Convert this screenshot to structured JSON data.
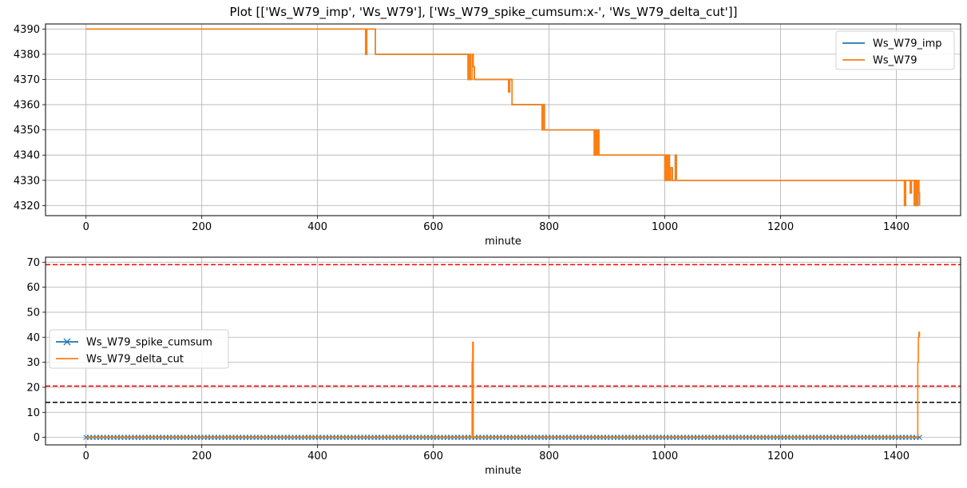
{
  "figure": {
    "title": "Plot [['Ws_W79_imp', 'Ws_W79'], ['Ws_W79_spike_cumsum:x-', 'Ws_W79_delta_cut']]"
  },
  "chart_data": [
    {
      "type": "line",
      "xlabel": "minute",
      "ylabel": "",
      "xlim": [
        -70,
        1511
      ],
      "ylim": [
        4316,
        4392
      ],
      "xticks": [
        0,
        200,
        400,
        600,
        800,
        1000,
        1200,
        1400
      ],
      "yticks": [
        4320,
        4330,
        4340,
        4350,
        4360,
        4370,
        4380,
        4390
      ],
      "grid": true,
      "legend": "top-right",
      "series": [
        {
          "name": "Ws_W79_imp",
          "color": "#1f77b4",
          "points": [
            [
              0,
              4390
            ],
            [
              483,
              4390
            ],
            [
              483,
              4380
            ],
            [
              485,
              4380
            ],
            [
              485,
              4390
            ],
            [
              500,
              4390
            ],
            [
              500,
              4380
            ],
            [
              660,
              4380
            ],
            [
              660,
              4370
            ],
            [
              662,
              4370
            ],
            [
              662,
              4380
            ],
            [
              664,
              4380
            ],
            [
              664,
              4370
            ],
            [
              667,
              4370
            ],
            [
              667,
              4380
            ],
            [
              669,
              4380
            ],
            [
              669,
              4375
            ],
            [
              671,
              4375
            ],
            [
              671,
              4370
            ],
            [
              730,
              4370
            ],
            [
              730,
              4365
            ],
            [
              732,
              4365
            ],
            [
              732,
              4370
            ],
            [
              736,
              4370
            ],
            [
              736,
              4360
            ],
            [
              788,
              4360
            ],
            [
              788,
              4350
            ],
            [
              790,
              4350
            ],
            [
              790,
              4360
            ],
            [
              792,
              4360
            ],
            [
              792,
              4350
            ],
            [
              878,
              4350
            ],
            [
              878,
              4340
            ],
            [
              880,
              4340
            ],
            [
              880,
              4350
            ],
            [
              882,
              4350
            ],
            [
              882,
              4340
            ],
            [
              884,
              4340
            ],
            [
              884,
              4350
            ],
            [
              886,
              4350
            ],
            [
              886,
              4340
            ],
            [
              1000,
              4340
            ],
            [
              1000,
              4330
            ],
            [
              1002,
              4330
            ],
            [
              1002,
              4340
            ],
            [
              1004,
              4340
            ],
            [
              1004,
              4330
            ],
            [
              1006,
              4330
            ],
            [
              1006,
              4340
            ],
            [
              1008,
              4340
            ],
            [
              1008,
              4330
            ],
            [
              1010,
              4330
            ],
            [
              1010,
              4335
            ],
            [
              1013,
              4335
            ],
            [
              1013,
              4330
            ],
            [
              1018,
              4330
            ],
            [
              1018,
              4340
            ],
            [
              1020,
              4340
            ],
            [
              1020,
              4330
            ],
            [
              1414,
              4330
            ],
            [
              1414,
              4320
            ],
            [
              1416,
              4320
            ],
            [
              1416,
              4330
            ],
            [
              1424,
              4330
            ],
            [
              1424,
              4325
            ],
            [
              1426,
              4325
            ],
            [
              1426,
              4330
            ],
            [
              1431,
              4330
            ],
            [
              1431,
              4320
            ],
            [
              1433,
              4320
            ],
            [
              1433,
              4330
            ],
            [
              1435,
              4330
            ],
            [
              1435,
              4320
            ],
            [
              1437,
              4320
            ],
            [
              1437,
              4330
            ],
            [
              1439,
              4330
            ],
            [
              1439,
              4325
            ],
            [
              1440,
              4325
            ],
            [
              1440,
              4320
            ]
          ]
        },
        {
          "name": "Ws_W79",
          "color": "#ff7f0e",
          "points": [
            [
              0,
              4390
            ],
            [
              483,
              4390
            ],
            [
              483,
              4380
            ],
            [
              485,
              4380
            ],
            [
              485,
              4390
            ],
            [
              500,
              4390
            ],
            [
              500,
              4380
            ],
            [
              660,
              4380
            ],
            [
              660,
              4370
            ],
            [
              662,
              4370
            ],
            [
              662,
              4380
            ],
            [
              664,
              4380
            ],
            [
              664,
              4370
            ],
            [
              667,
              4370
            ],
            [
              667,
              4380
            ],
            [
              669,
              4380
            ],
            [
              669,
              4375
            ],
            [
              671,
              4375
            ],
            [
              671,
              4370
            ],
            [
              730,
              4370
            ],
            [
              730,
              4365
            ],
            [
              732,
              4365
            ],
            [
              732,
              4370
            ],
            [
              736,
              4370
            ],
            [
              736,
              4360
            ],
            [
              788,
              4360
            ],
            [
              788,
              4350
            ],
            [
              790,
              4350
            ],
            [
              790,
              4360
            ],
            [
              792,
              4360
            ],
            [
              792,
              4350
            ],
            [
              878,
              4350
            ],
            [
              878,
              4340
            ],
            [
              880,
              4340
            ],
            [
              880,
              4350
            ],
            [
              882,
              4350
            ],
            [
              882,
              4340
            ],
            [
              884,
              4340
            ],
            [
              884,
              4350
            ],
            [
              886,
              4350
            ],
            [
              886,
              4340
            ],
            [
              1000,
              4340
            ],
            [
              1000,
              4330
            ],
            [
              1002,
              4330
            ],
            [
              1002,
              4340
            ],
            [
              1004,
              4340
            ],
            [
              1004,
              4330
            ],
            [
              1006,
              4330
            ],
            [
              1006,
              4340
            ],
            [
              1008,
              4340
            ],
            [
              1008,
              4330
            ],
            [
              1010,
              4330
            ],
            [
              1010,
              4335
            ],
            [
              1013,
              4335
            ],
            [
              1013,
              4330
            ],
            [
              1018,
              4330
            ],
            [
              1018,
              4340
            ],
            [
              1020,
              4340
            ],
            [
              1020,
              4330
            ],
            [
              1414,
              4330
            ],
            [
              1414,
              4320
            ],
            [
              1416,
              4320
            ],
            [
              1416,
              4330
            ],
            [
              1424,
              4330
            ],
            [
              1424,
              4325
            ],
            [
              1426,
              4325
            ],
            [
              1426,
              4330
            ],
            [
              1431,
              4330
            ],
            [
              1431,
              4320
            ],
            [
              1433,
              4320
            ],
            [
              1433,
              4330
            ],
            [
              1435,
              4330
            ],
            [
              1435,
              4320
            ],
            [
              1437,
              4320
            ],
            [
              1437,
              4330
            ],
            [
              1439,
              4330
            ],
            [
              1439,
              4325
            ],
            [
              1440,
              4325
            ],
            [
              1440,
              4320
            ]
          ]
        }
      ]
    },
    {
      "type": "line",
      "xlabel": "minute",
      "ylabel": "",
      "xlim": [
        -70,
        1511
      ],
      "ylim": [
        -3,
        72
      ],
      "xticks": [
        0,
        200,
        400,
        600,
        800,
        1000,
        1200,
        1400
      ],
      "yticks": [
        0,
        10,
        20,
        30,
        40,
        50,
        60,
        70
      ],
      "grid": true,
      "legend": "center-left",
      "hlines": [
        {
          "y": 69,
          "color": "#ff0000",
          "style": "dashed"
        },
        {
          "y": 20.5,
          "color": "#ff0000",
          "style": "dashed"
        },
        {
          "y": 14,
          "color": "#000000",
          "style": "dashed"
        }
      ],
      "series": [
        {
          "name": "Ws_W79_spike_cumsum",
          "color": "#1f77b4",
          "marker": "x",
          "x_range": [
            0,
            1440
          ],
          "value": 0
        },
        {
          "name": "Ws_W79_delta_cut",
          "color": "#ff7f0e",
          "points": [
            [
              0,
              0
            ],
            [
              667,
              0
            ],
            [
              667,
              30
            ],
            [
              668,
              30
            ],
            [
              668,
              38
            ],
            [
              669,
              38
            ],
            [
              669,
              0
            ],
            [
              1437,
              0
            ],
            [
              1437,
              30
            ],
            [
              1438,
              30
            ],
            [
              1438,
              40
            ],
            [
              1439,
              40
            ],
            [
              1439,
              42
            ],
            [
              1440,
              42
            ],
            [
              1440,
              40
            ]
          ]
        }
      ]
    }
  ]
}
